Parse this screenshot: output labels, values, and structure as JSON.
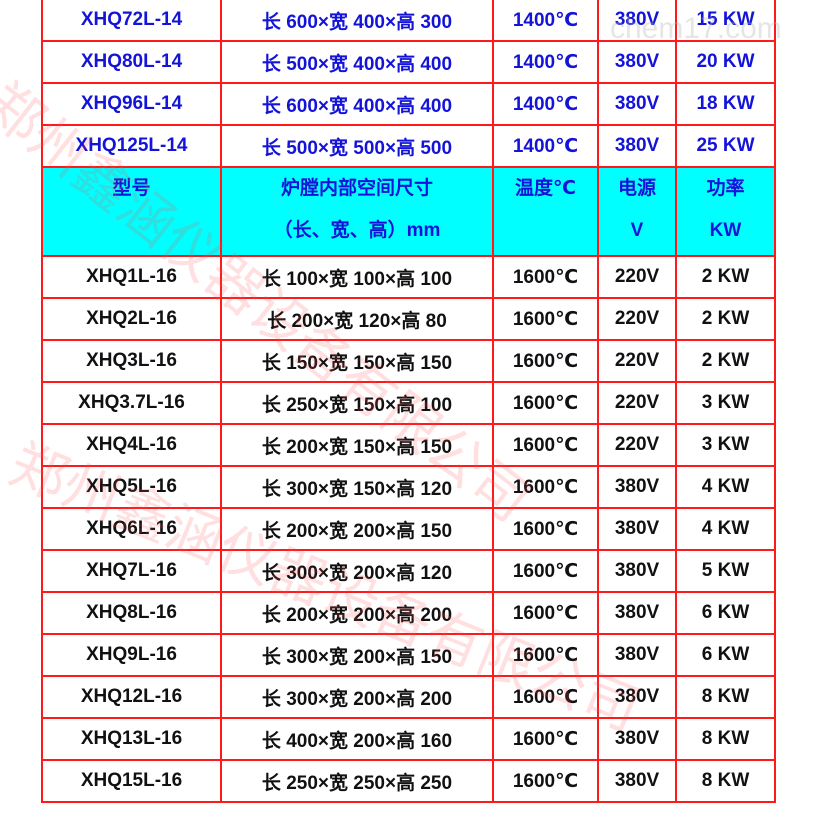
{
  "colors": {
    "border": "#ff1a1a",
    "header_bg": "#00ffff",
    "blue_text": "#1414d8"
  },
  "rows_top": [
    [
      "XHQ72L-14",
      "长 600×宽 400×高 300",
      "1400℃",
      "380V",
      "15 KW"
    ],
    [
      "XHQ80L-14",
      "长 500×宽 400×高 400",
      "1400℃",
      "380V",
      "20 KW"
    ],
    [
      "XHQ96L-14",
      "长 600×宽 400×高 400",
      "1400℃",
      "380V",
      "18 KW"
    ],
    [
      "XHQ125L-14",
      "长 500×宽 500×高 500",
      "1400℃",
      "380V",
      "25 KW"
    ]
  ],
  "header": {
    "model": "型号",
    "size_line1": "炉膛内部空间尺寸",
    "size_line2": "（长、宽、高）mm",
    "temp": "温度℃",
    "power_line1": "电源",
    "power_line2": "V",
    "watt_line1": "功率",
    "watt_line2": "KW"
  },
  "rows_bottom": [
    [
      "XHQ1L-16",
      "长 100×宽 100×高 100",
      "1600℃",
      "220V",
      "2 KW"
    ],
    [
      "XHQ2L-16",
      "长 200×宽 120×高 80",
      "1600℃",
      "220V",
      "2 KW"
    ],
    [
      "XHQ3L-16",
      "长 150×宽 150×高 150",
      "1600℃",
      "220V",
      "2 KW"
    ],
    [
      "XHQ3.7L-16",
      "长 250×宽 150×高 100",
      "1600℃",
      "220V",
      "3 KW"
    ],
    [
      "XHQ4L-16",
      "长 200×宽 150×高 150",
      "1600℃",
      "220V",
      "3 KW"
    ],
    [
      "XHQ5L-16",
      "长 300×宽 150×高 120",
      "1600℃",
      "380V",
      "4 KW"
    ],
    [
      "XHQ6L-16",
      "长 200×宽 200×高 150",
      "1600℃",
      "380V",
      "4 KW"
    ],
    [
      "XHQ7L-16",
      "长 300×宽 200×高 120",
      "1600℃",
      "380V",
      "5 KW"
    ],
    [
      "XHQ8L-16",
      "长 200×宽 200×高 200",
      "1600℃",
      "380V",
      "6 KW"
    ],
    [
      "XHQ9L-16",
      "长 300×宽 200×高 150",
      "1600℃",
      "380V",
      "6 KW"
    ],
    [
      "XHQ12L-16",
      "长 300×宽 200×高 200",
      "1600℃",
      "380V",
      "8 KW"
    ],
    [
      "XHQ13L-16",
      "长 400×宽 200×高 160",
      "1600℃",
      "380V",
      "8 KW"
    ],
    [
      "XHQ15L-16",
      "长 250×宽 250×高 250",
      "1600℃",
      "380V",
      "8 KW"
    ]
  ],
  "watermark": {
    "company": "郑州鑫涵仪器设备有限公司",
    "site": "chem17.com"
  }
}
